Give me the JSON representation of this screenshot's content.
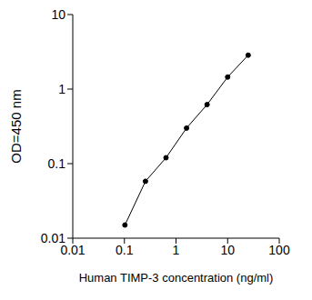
{
  "chart_data": {
    "type": "line",
    "x_label": "Human TIMP-3 concentration (ng/ml)",
    "y_label": "OD=450 nm",
    "x": [
      0.1024,
      0.256,
      0.64,
      1.6,
      4,
      10,
      25
    ],
    "values": [
      0.015,
      0.058,
      0.12,
      0.3,
      0.62,
      1.45,
      2.85
    ],
    "xlim": [
      0.01,
      100
    ],
    "xticks": [
      0.01,
      0.1,
      1,
      10,
      100
    ],
    "ylim": [
      0.01,
      10
    ],
    "yticks": [
      0.01,
      0.1,
      1,
      10
    ],
    "log": true,
    "grid": false,
    "color": "#000000",
    "marker": "circle",
    "line_style": "solid"
  }
}
